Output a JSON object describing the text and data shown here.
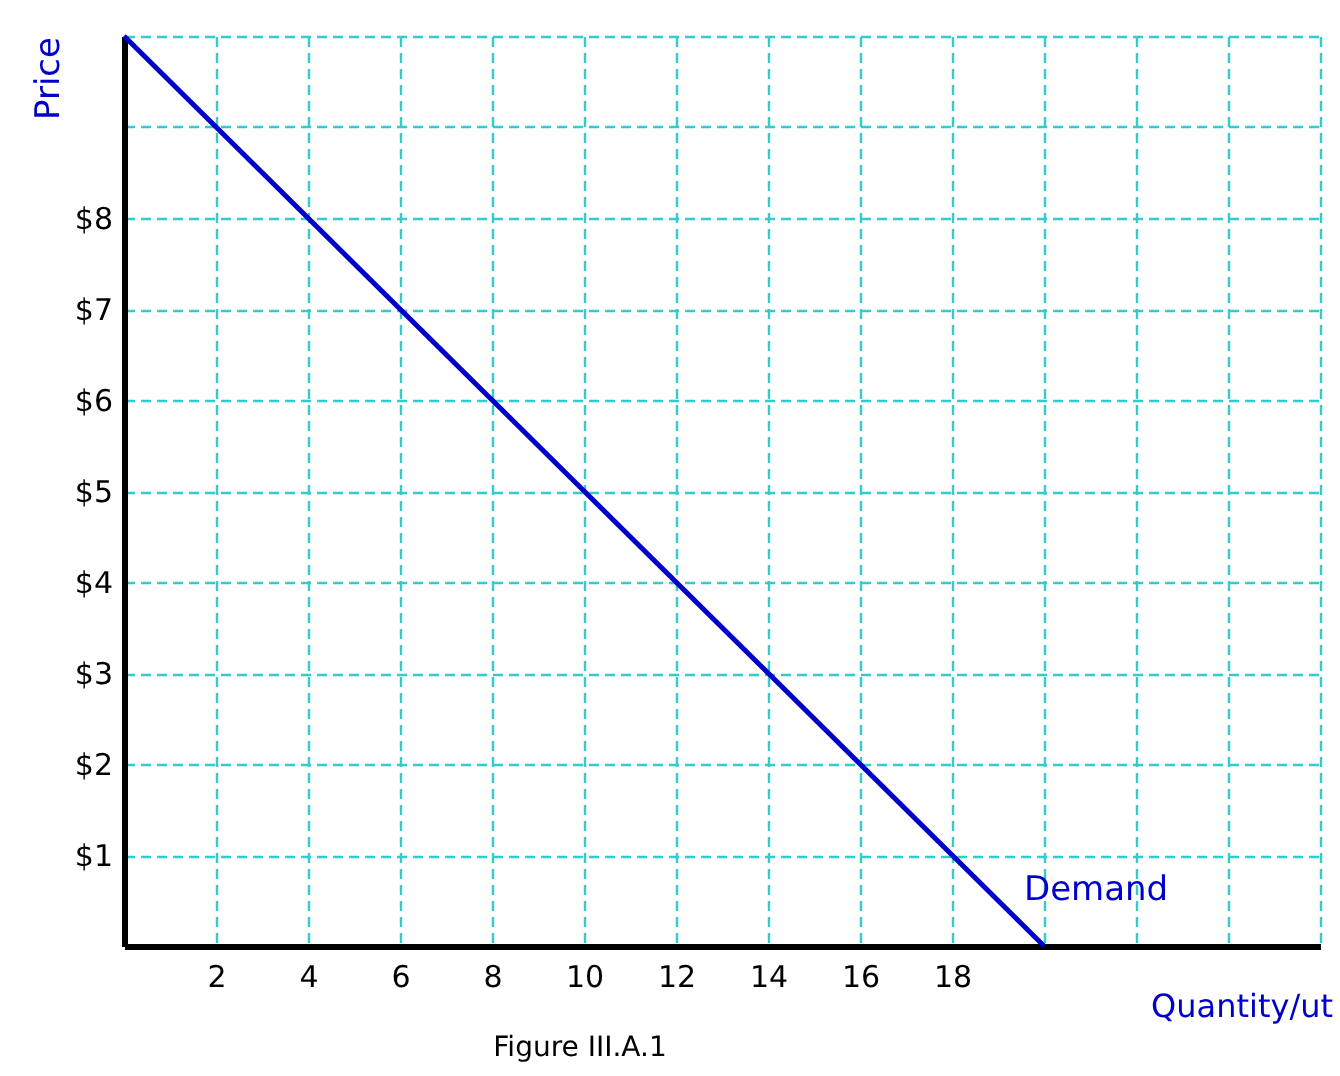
{
  "chart_data": {
    "type": "line",
    "xlabel": "Quantity/ut",
    "ylabel": "Price",
    "annotations": [
      "Figure III.A.1"
    ],
    "x": [
      0,
      20
    ],
    "series": [
      {
        "name": "Demand",
        "color": "#0000cc",
        "values": [
          10,
          0
        ]
      }
    ],
    "xlim": [
      0,
      26
    ],
    "ylim": [
      0,
      10
    ],
    "xticks": [
      {
        "value": 0,
        "label": null
      },
      2,
      4,
      6,
      8,
      10,
      12,
      14,
      16,
      18,
      {
        "value": 20,
        "label": null
      },
      {
        "value": 22,
        "label": null
      },
      {
        "value": 24,
        "label": null
      },
      {
        "value": 26,
        "label": null
      }
    ],
    "yticks": [
      {
        "value": 0,
        "label": null
      },
      {
        "value": 1,
        "label": "$1"
      },
      {
        "value": 2,
        "label": "$2"
      },
      {
        "value": 3,
        "label": "$3"
      },
      {
        "value": 4,
        "label": "$4"
      },
      {
        "value": 5,
        "label": "$5"
      },
      {
        "value": 6,
        "label": "$6"
      },
      {
        "value": 7,
        "label": "$7"
      },
      {
        "value": 8,
        "label": "$8"
      },
      {
        "value": 9,
        "label": null
      },
      {
        "value": 10,
        "label": null
      }
    ],
    "grid": true,
    "line_style": "solid",
    "marker": "none"
  }
}
